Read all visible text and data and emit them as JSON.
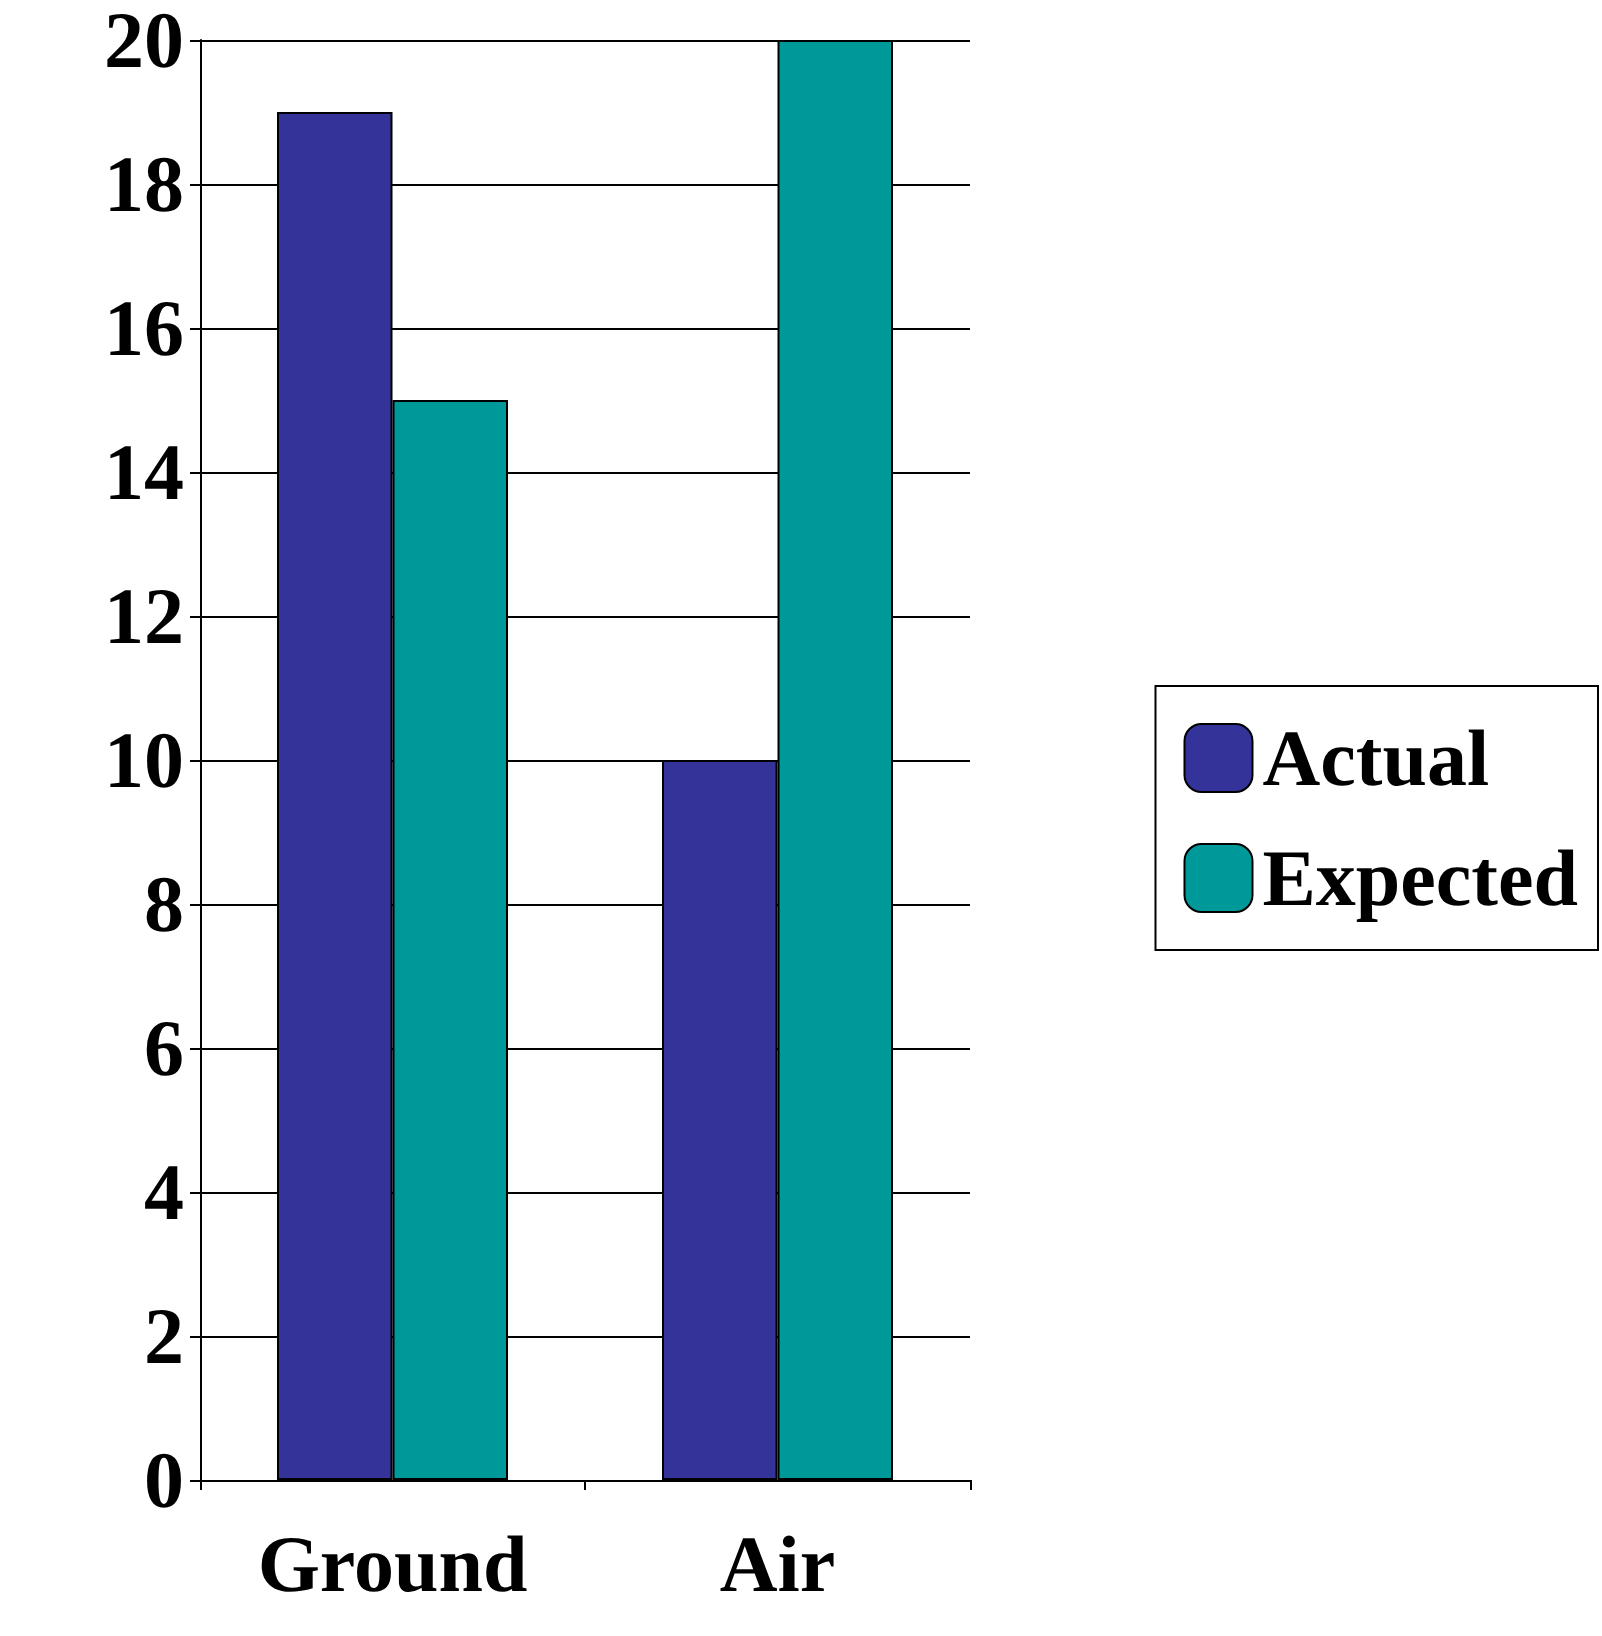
{
  "chart_data": {
    "type": "bar",
    "categories": [
      "Ground",
      "Air"
    ],
    "series": [
      {
        "name": "Actual",
        "color": "#333399",
        "values": [
          19,
          10
        ]
      },
      {
        "name": "Expected",
        "color": "#009999",
        "values": [
          15,
          20
        ]
      }
    ],
    "ylim": [
      0,
      20
    ],
    "yticks": [
      0,
      2,
      4,
      6,
      8,
      10,
      12,
      14,
      16,
      18,
      20
    ],
    "grid": "y",
    "legend": "right"
  }
}
